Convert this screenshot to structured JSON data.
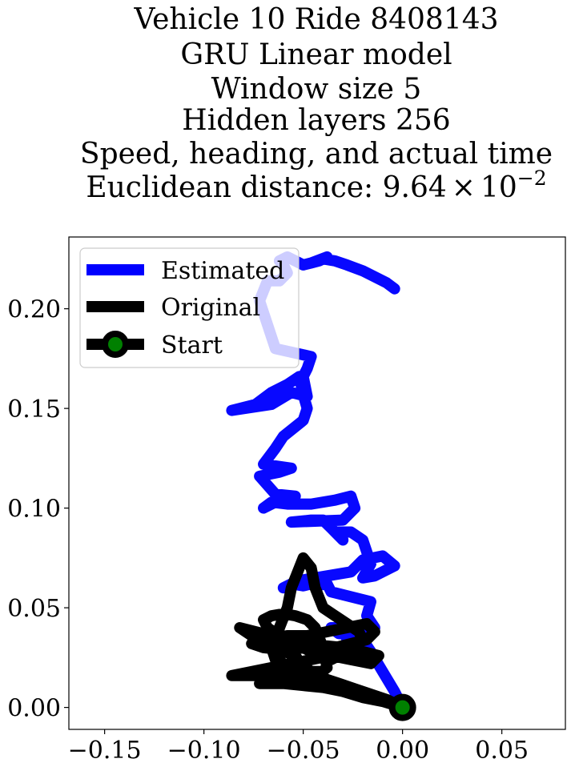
{
  "chart_data": {
    "type": "line",
    "title_lines": [
      "Vehicle 10 Ride 8408143",
      "GRU Linear model",
      "Window size 5",
      "Hidden layers 256",
      "Speed, heading, and actual time"
    ],
    "title_distance_prefix": "Euclidean distance: ",
    "title_distance_mantissa": "9.64",
    "title_distance_times": "×",
    "title_distance_base": "10",
    "title_distance_exponent": "−2",
    "xlabel": "",
    "ylabel": "",
    "xlim": [
      -0.168,
      0.082
    ],
    "ylim": [
      -0.011,
      0.236
    ],
    "xticks": [
      -0.15,
      -0.1,
      -0.05,
      0.0,
      0.05
    ],
    "xtick_labels": [
      "−0.15",
      "−0.10",
      "−0.05",
      "0.00",
      "0.05"
    ],
    "yticks": [
      0.0,
      0.05,
      0.1,
      0.15,
      0.2
    ],
    "ytick_labels": [
      "0.00",
      "0.05",
      "0.10",
      "0.15",
      "0.20"
    ],
    "grid": false,
    "legend_position": "upper-left",
    "series": [
      {
        "name": "Estimated",
        "color": "#0000ff",
        "x": [
          0.0,
          -0.004,
          -0.01,
          -0.016,
          -0.02,
          -0.024,
          -0.026,
          -0.03,
          -0.028,
          -0.032,
          -0.036,
          -0.024,
          -0.014,
          -0.018,
          -0.016,
          -0.036,
          -0.038,
          -0.044,
          -0.046,
          -0.05,
          -0.056,
          -0.06,
          -0.05,
          -0.038,
          -0.026,
          -0.02,
          -0.01,
          -0.004,
          -0.014,
          -0.02,
          -0.016,
          -0.02,
          -0.026,
          -0.034,
          -0.03,
          -0.036,
          -0.04,
          -0.046,
          -0.056,
          -0.03,
          -0.024,
          -0.026,
          -0.034,
          -0.046,
          -0.058,
          -0.066,
          -0.07,
          -0.058,
          -0.054,
          -0.064,
          -0.072,
          -0.062,
          -0.056,
          -0.07,
          -0.064,
          -0.06,
          -0.05,
          -0.048,
          -0.05,
          -0.052,
          -0.058,
          -0.066,
          -0.074,
          -0.086,
          -0.066,
          -0.056,
          -0.048,
          -0.05,
          -0.048,
          -0.046,
          -0.064,
          -0.072,
          -0.068,
          -0.062,
          -0.058,
          -0.06,
          -0.062,
          -0.058,
          -0.054,
          -0.05,
          -0.046,
          -0.042,
          -0.038,
          -0.046,
          -0.04,
          -0.034,
          -0.028,
          -0.02,
          -0.014,
          -0.008,
          -0.004
        ],
        "y": [
          0.0,
          0.008,
          0.018,
          0.028,
          0.034,
          0.036,
          0.031,
          0.038,
          0.04,
          0.037,
          0.04,
          0.04,
          0.04,
          0.046,
          0.053,
          0.058,
          0.062,
          0.061,
          0.062,
          0.061,
          0.062,
          0.06,
          0.064,
          0.066,
          0.068,
          0.074,
          0.076,
          0.071,
          0.066,
          0.065,
          0.072,
          0.084,
          0.088,
          0.088,
          0.084,
          0.09,
          0.094,
          0.094,
          0.093,
          0.094,
          0.1,
          0.106,
          0.104,
          0.102,
          0.102,
          0.103,
          0.1,
          0.106,
          0.106,
          0.107,
          0.116,
          0.118,
          0.12,
          0.122,
          0.13,
          0.136,
          0.144,
          0.15,
          0.157,
          0.166,
          0.162,
          0.158,
          0.152,
          0.149,
          0.152,
          0.158,
          0.156,
          0.166,
          0.17,
          0.176,
          0.18,
          0.204,
          0.214,
          0.214,
          0.218,
          0.222,
          0.224,
          0.226,
          0.224,
          0.222,
          0.223,
          0.224,
          0.226,
          0.223,
          0.225,
          0.224,
          0.222,
          0.219,
          0.216,
          0.213,
          0.21
        ]
      },
      {
        "name": "Original",
        "color": "#000000",
        "x": [
          0.0,
          -0.01,
          -0.02,
          -0.03,
          -0.04,
          -0.05,
          -0.06,
          -0.072,
          -0.06,
          -0.048,
          -0.04,
          -0.05,
          -0.06,
          -0.07,
          -0.08,
          -0.086,
          -0.076,
          -0.066,
          -0.056,
          -0.046,
          -0.036,
          -0.026,
          -0.016,
          -0.012,
          -0.02,
          -0.03,
          -0.04,
          -0.05,
          -0.06,
          -0.07,
          -0.076,
          -0.068,
          -0.058,
          -0.048,
          -0.038,
          -0.028,
          -0.018,
          -0.014,
          -0.018,
          -0.026,
          -0.034,
          -0.044,
          -0.054,
          -0.062,
          -0.068,
          -0.07,
          -0.066,
          -0.06,
          -0.054,
          -0.048,
          -0.044,
          -0.04,
          -0.038,
          -0.044,
          -0.05,
          -0.056,
          -0.06,
          -0.064,
          -0.062,
          -0.058,
          -0.056,
          -0.052,
          -0.05,
          -0.046,
          -0.044,
          -0.04,
          -0.034,
          -0.028,
          -0.022,
          -0.02,
          -0.026,
          -0.032,
          -0.036,
          -0.042,
          -0.05,
          -0.058,
          -0.066,
          -0.074,
          -0.082,
          -0.076,
          -0.068,
          -0.06,
          -0.054,
          -0.05,
          -0.046,
          -0.048,
          -0.054,
          -0.06,
          -0.064,
          -0.066,
          -0.064,
          -0.06,
          -0.056,
          -0.052,
          -0.046,
          -0.038,
          -0.032,
          -0.026,
          -0.02,
          -0.014,
          -0.008,
          -0.004,
          0.0
        ],
        "y": [
          0.0,
          0.003,
          0.005,
          0.008,
          0.01,
          0.011,
          0.012,
          0.012,
          0.014,
          0.016,
          0.018,
          0.018,
          0.017,
          0.016,
          0.016,
          0.016,
          0.018,
          0.02,
          0.022,
          0.024,
          0.026,
          0.024,
          0.022,
          0.026,
          0.028,
          0.03,
          0.031,
          0.03,
          0.029,
          0.03,
          0.032,
          0.034,
          0.036,
          0.036,
          0.038,
          0.04,
          0.042,
          0.038,
          0.034,
          0.032,
          0.03,
          0.031,
          0.033,
          0.036,
          0.04,
          0.044,
          0.046,
          0.047,
          0.046,
          0.044,
          0.04,
          0.03,
          0.02,
          0.015,
          0.012,
          0.014,
          0.02,
          0.03,
          0.04,
          0.05,
          0.06,
          0.07,
          0.075,
          0.07,
          0.06,
          0.05,
          0.046,
          0.042,
          0.038,
          0.034,
          0.03,
          0.026,
          0.024,
          0.026,
          0.03,
          0.034,
          0.036,
          0.038,
          0.04,
          0.036,
          0.034,
          0.03,
          0.026,
          0.02,
          0.016,
          0.012,
          0.016,
          0.02,
          0.024,
          0.03,
          0.034,
          0.03,
          0.026,
          0.022,
          0.018,
          0.014,
          0.012,
          0.01,
          0.008,
          0.006,
          0.004,
          0.002,
          0.0
        ]
      },
      {
        "name": "Start",
        "color": "#000000",
        "marker_fill": "#008000",
        "x": [
          0.0
        ],
        "y": [
          0.0
        ]
      }
    ]
  }
}
